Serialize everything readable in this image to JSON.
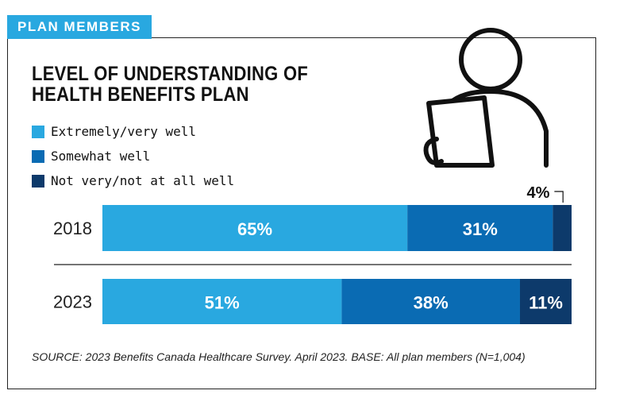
{
  "tag": "PLAN MEMBERS",
  "title_lines": [
    "LEVEL OF UNDERSTANDING OF",
    "HEALTH BENEFITS PLAN"
  ],
  "colors": {
    "light_blue": "#29a8e0",
    "mid_blue": "#0a6bb3",
    "dark_navy": "#0d3a6b",
    "tag_bg": "#29a8e0"
  },
  "icon": "person-with-clipboard-icon",
  "source": "SOURCE: 2023 Benefits Canada Healthcare Survey. April 2023. BASE: All plan members (N=1,004)",
  "chart_data": {
    "type": "bar",
    "orientation": "horizontal-stacked",
    "categories": [
      "2018",
      "2023"
    ],
    "series": [
      {
        "name": "Extremely/very well",
        "values": [
          65,
          51
        ],
        "labels": [
          "65%",
          "51%"
        ],
        "color": "#29a8e0"
      },
      {
        "name": "Somewhat well",
        "values": [
          31,
          38
        ],
        "labels": [
          "31%",
          "38%"
        ],
        "color": "#0a6bb3"
      },
      {
        "name": "Not very/not at all well",
        "values": [
          4,
          11
        ],
        "labels": [
          "4%",
          "11%"
        ],
        "color": "#0d3a6b"
      }
    ],
    "xlim": [
      0,
      100
    ],
    "legend": "top-left",
    "grid": false
  }
}
